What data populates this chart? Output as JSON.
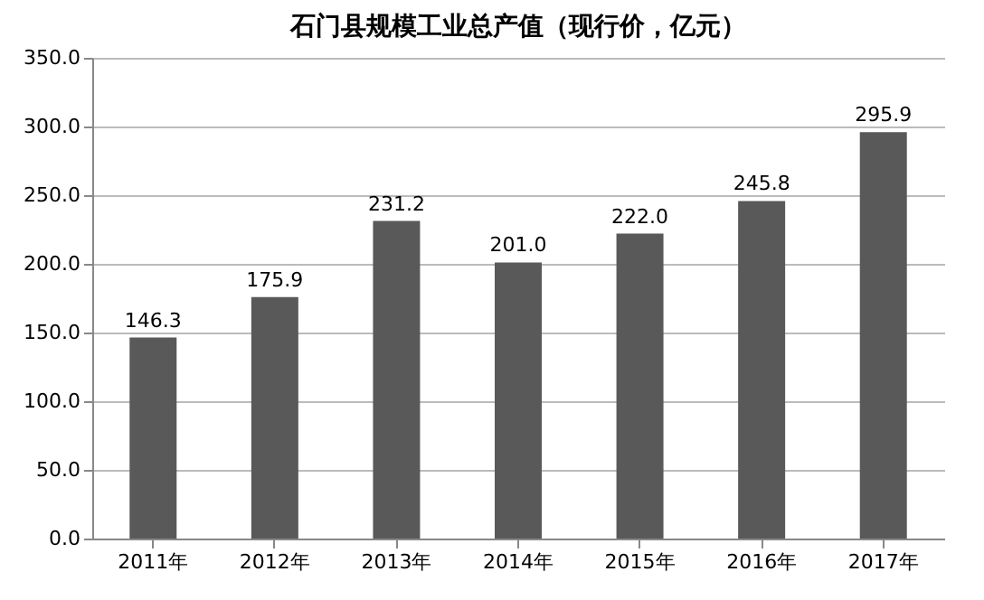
{
  "chart_data": {
    "type": "bar",
    "title": "石门县规模工业总产值（现行价，亿元）",
    "categories": [
      "2011年",
      "2012年",
      "2013年",
      "2014年",
      "2015年",
      "2016年",
      "2017年"
    ],
    "values": [
      146.3,
      175.9,
      231.2,
      201.0,
      222.0,
      245.8,
      295.9
    ],
    "value_labels": [
      "146.3",
      "175.9",
      "231.2",
      "201.0",
      "222.0",
      "245.8",
      "295.9"
    ],
    "color": "#595959",
    "ylim": [
      0,
      350
    ],
    "yticks": [
      {
        "value": 0,
        "label": "0.0"
      },
      {
        "value": 50,
        "label": "50.0"
      },
      {
        "value": 100,
        "label": "100.0"
      },
      {
        "value": 150,
        "label": "150.0"
      },
      {
        "value": 200,
        "label": "200.0"
      },
      {
        "value": 250,
        "label": "250.0"
      },
      {
        "value": 300,
        "label": "300.0"
      },
      {
        "value": 350,
        "label": "350.0"
      }
    ],
    "grid": "y"
  }
}
